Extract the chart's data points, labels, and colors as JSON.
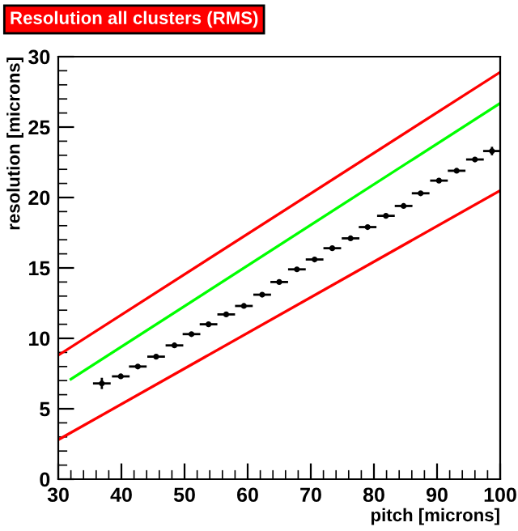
{
  "chart_data": {
    "type": "scatter",
    "title": "Resolution all clusters (RMS)",
    "xlabel": "pitch [microns]",
    "ylabel": "resolution [microns]",
    "xlim": [
      30,
      100
    ],
    "ylim": [
      0,
      30
    ],
    "xticks": [
      30,
      40,
      50,
      60,
      70,
      80,
      90,
      100
    ],
    "yticks": [
      0,
      5,
      10,
      15,
      20,
      25,
      30
    ],
    "grid": false,
    "legend": false,
    "series": [
      {
        "marker": "circle",
        "color": "#000000",
        "x": [
          36.9,
          39.9,
          42.6,
          45.5,
          48.4,
          51.1,
          53.8,
          56.6,
          59.4,
          62.3,
          65.0,
          67.8,
          70.6,
          73.4,
          76.3,
          79.0,
          81.9,
          84.7,
          87.4,
          90.3,
          93.1,
          96.0,
          98.7
        ],
        "values": [
          6.8,
          7.3,
          8.0,
          8.7,
          9.5,
          10.3,
          11.0,
          11.7,
          12.3,
          13.1,
          14.0,
          14.9,
          15.6,
          16.4,
          17.1,
          17.9,
          18.7,
          19.4,
          20.3,
          21.2,
          21.9,
          22.7,
          23.3
        ],
        "xerrors": [
          1.4,
          1.4,
          1.4,
          1.4,
          1.4,
          1.4,
          1.4,
          1.4,
          1.4,
          1.4,
          1.4,
          1.4,
          1.4,
          1.4,
          1.4,
          1.4,
          1.4,
          1.4,
          1.4,
          1.4,
          1.4,
          1.4,
          1.4
        ],
        "errors": [
          0.4,
          0.15,
          0.1,
          0.1,
          0.1,
          0.1,
          0.1,
          0.1,
          0.1,
          0.1,
          0.1,
          0.1,
          0.1,
          0.1,
          0.1,
          0.1,
          0.1,
          0.1,
          0.1,
          0.1,
          0.1,
          0.15,
          0.3
        ]
      },
      {
        "type": "line",
        "color": "#ff0000",
        "x": [
          30,
          100
        ],
        "values": [
          8.8,
          28.9
        ]
      },
      {
        "type": "line",
        "color": "#00ff00",
        "x": [
          32,
          100
        ],
        "values": [
          7.1,
          26.7
        ]
      },
      {
        "type": "line",
        "color": "#ff0000",
        "x": [
          30,
          100
        ],
        "values": [
          2.8,
          20.5
        ]
      }
    ]
  }
}
